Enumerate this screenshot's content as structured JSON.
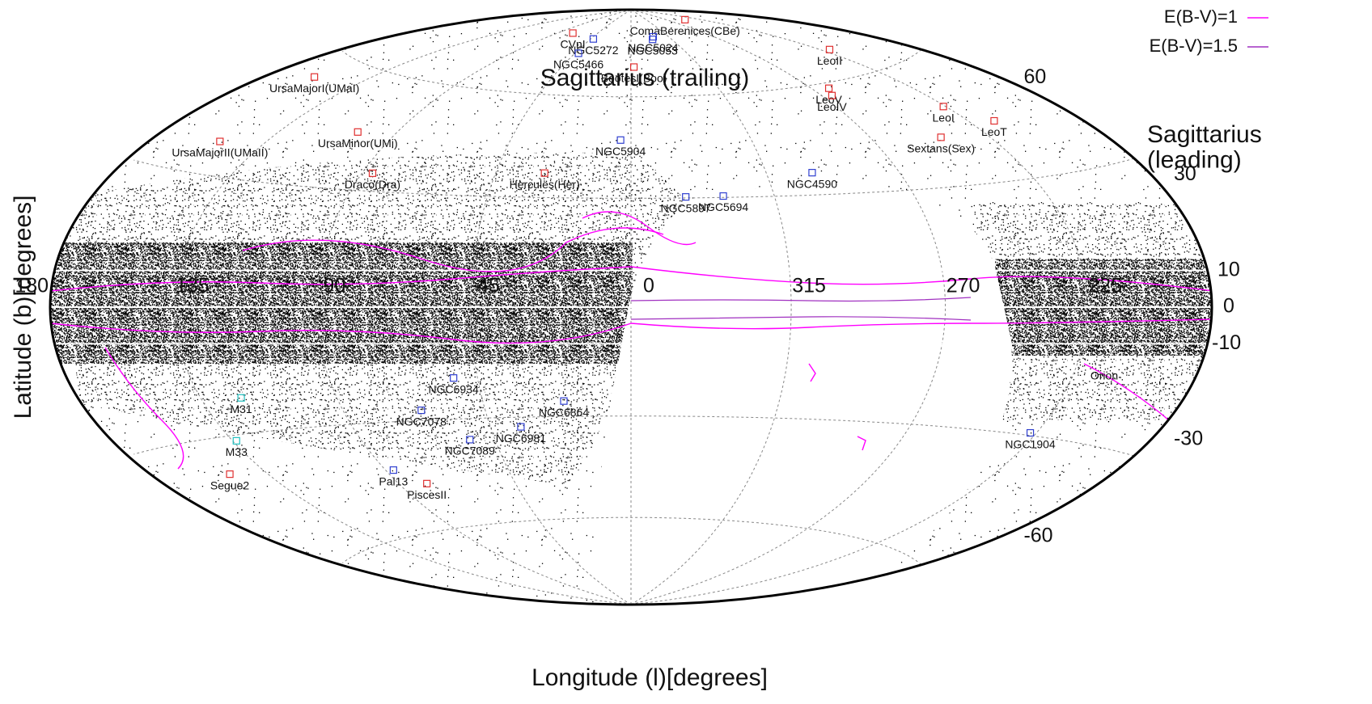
{
  "chart_data": {
    "type": "hammer-map",
    "xlabel": "Longitude (l)[degrees]",
    "ylabel": "Latitude (b)[degrees]",
    "xticks": [
      135,
      90,
      45,
      0,
      315,
      270,
      225,
      180
    ],
    "yticks": [
      60,
      30,
      10,
      0,
      -10,
      -30,
      -60
    ],
    "annotations": [
      "Sagittarius (trailing)",
      "Sagittarius\n(leading)",
      "Orion"
    ],
    "legend": [
      {
        "name": "E(B-V)=1",
        "color": "#ff00ff"
      },
      {
        "name": "E(B-V)=1.5",
        "color": "#a030c0"
      }
    ],
    "objects": [
      {
        "name": "CVnI",
        "l": 74.3,
        "b": 79.8,
        "color": "#e03030"
      },
      {
        "name": "ComaBerenices(CBe)",
        "l": 241.9,
        "b": 83.6,
        "color": "#e03030"
      },
      {
        "name": "BootesI(Boo)",
        "l": 358.1,
        "b": 69.6,
        "color": "#e03030"
      },
      {
        "name": "LeoII",
        "l": 220.2,
        "b": 67.2,
        "color": "#e03030"
      },
      {
        "name": "LeoV",
        "l": 261.9,
        "b": 58.5,
        "color": "#e03030"
      },
      {
        "name": "LeoIV",
        "l": 265.4,
        "b": 56.5,
        "color": "#e03030"
      },
      {
        "name": "LeoI",
        "l": 226.0,
        "b": 49.1,
        "color": "#e03030"
      },
      {
        "name": "LeoT",
        "l": 214.9,
        "b": 43.7,
        "color": "#e03030"
      },
      {
        "name": "Sextans(Sex)",
        "l": 243.5,
        "b": 42.3,
        "color": "#e03030"
      },
      {
        "name": "UrsaMajorI(UMaI)",
        "l": 159.4,
        "b": 54.4,
        "color": "#e03030"
      },
      {
        "name": "UrsaMinor(UMi)",
        "l": 105.0,
        "b": 44.8,
        "color": "#e03030"
      },
      {
        "name": "UrsaMajorII(UMaII)",
        "l": 152.5,
        "b": 37.4,
        "color": "#e03030"
      },
      {
        "name": "Draco(Dra)",
        "l": 86.4,
        "b": 34.7,
        "color": "#e03030"
      },
      {
        "name": "Hercules(Her)",
        "l": 28.7,
        "b": 36.9,
        "color": "#e03030"
      },
      {
        "name": "Segue2",
        "l": 149.4,
        "b": -38.1,
        "color": "#e03030"
      },
      {
        "name": "PiscesII",
        "l": 79.2,
        "b": -47.1,
        "color": "#e03030"
      },
      {
        "name": "NGC5272",
        "l": 42.2,
        "b": 78.7,
        "color": "#3040d0"
      },
      {
        "name": "NGC5024",
        "l": 333.0,
        "b": 79.8,
        "color": "#3040d0"
      },
      {
        "name": "NGC5053",
        "l": 335.7,
        "b": 78.9,
        "color": "#3040d0"
      },
      {
        "name": "NGC5466",
        "l": 42.2,
        "b": 73.6,
        "color": "#3040d0"
      },
      {
        "name": "NGC5904",
        "l": 3.9,
        "b": 46.8,
        "color": "#3040d0"
      },
      {
        "name": "NGC4590",
        "l": 299.6,
        "b": 36.1,
        "color": "#3040d0"
      },
      {
        "name": "NGC5897",
        "l": 342.9,
        "b": 30.3,
        "color": "#3040d0"
      },
      {
        "name": "NGC5694",
        "l": 331.1,
        "b": 30.4,
        "color": "#3040d0"
      },
      {
        "name": "NGC6934",
        "l": 52.1,
        "b": -18.9,
        "color": "#3040d0"
      },
      {
        "name": "NGC7078",
        "l": 65.0,
        "b": -27.3,
        "color": "#3040d0"
      },
      {
        "name": "NGC6864",
        "l": 20.3,
        "b": -25.7,
        "color": "#3040d0"
      },
      {
        "name": "NGC6981",
        "l": 35.2,
        "b": -32.7,
        "color": "#3040d0"
      },
      {
        "name": "NGC7089",
        "l": 53.4,
        "b": -35.8,
        "color": "#3040d0"
      },
      {
        "name": "Pal13",
        "l": 87.1,
        "b": -42.7,
        "color": "#3040d0"
      },
      {
        "name": "NGC1904",
        "l": 227.2,
        "b": -29.4,
        "color": "#3040d0"
      },
      {
        "name": "M31",
        "l": 121.2,
        "b": -21.6,
        "color": "#20c0c0"
      },
      {
        "name": "M33",
        "l": 133.6,
        "b": -31.3,
        "color": "#20c0c0"
      }
    ]
  }
}
